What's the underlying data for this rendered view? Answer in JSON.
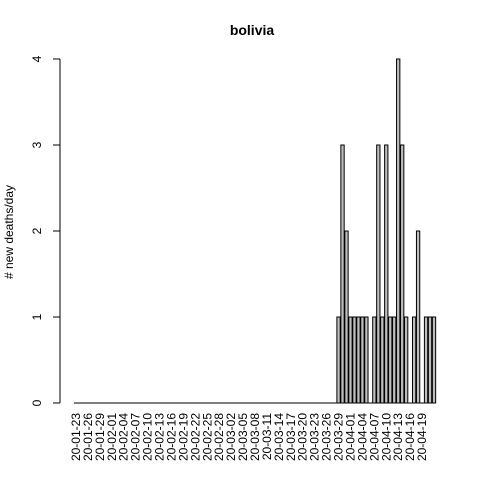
{
  "chart_data": {
    "type": "bar",
    "title": "bolivia",
    "xlabel": "",
    "ylabel": "# new deaths/day",
    "ylim": [
      0,
      4
    ],
    "yticks": [
      0,
      1,
      2,
      3,
      4
    ],
    "start_date": "2020-01-23",
    "tick_every_n_days": 3,
    "tick_labels": [
      "20-01-23",
      "20-01-26",
      "20-01-29",
      "20-02-01",
      "20-02-04",
      "20-02-07",
      "20-02-10",
      "20-02-13",
      "20-02-16",
      "20-02-19",
      "20-02-22",
      "20-02-25",
      "20-02-28",
      "20-03-02",
      "20-03-05",
      "20-03-08",
      "20-03-11",
      "20-03-14",
      "20-03-17",
      "20-03-20",
      "20-03-23",
      "20-03-26",
      "20-03-29",
      "20-04-01",
      "20-04-04",
      "20-04-07",
      "20-04-10",
      "20-04-13",
      "20-04-16",
      "20-04-19"
    ],
    "values": [
      0,
      0,
      0,
      0,
      0,
      0,
      0,
      0,
      0,
      0,
      0,
      0,
      0,
      0,
      0,
      0,
      0,
      0,
      0,
      0,
      0,
      0,
      0,
      0,
      0,
      0,
      0,
      0,
      0,
      0,
      0,
      0,
      0,
      0,
      0,
      0,
      0,
      0,
      0,
      0,
      0,
      0,
      0,
      0,
      0,
      0,
      0,
      0,
      0,
      0,
      0,
      0,
      0,
      0,
      0,
      0,
      0,
      0,
      0,
      0,
      0,
      0,
      0,
      0,
      0,
      0,
      1,
      3,
      2,
      1,
      1,
      1,
      1,
      1,
      0,
      1,
      3,
      1,
      3,
      1,
      1,
      4,
      3,
      1,
      0,
      1,
      2,
      0,
      1,
      1,
      1
    ],
    "bar_color": "#bebebe",
    "grid": false,
    "legend": "none"
  }
}
